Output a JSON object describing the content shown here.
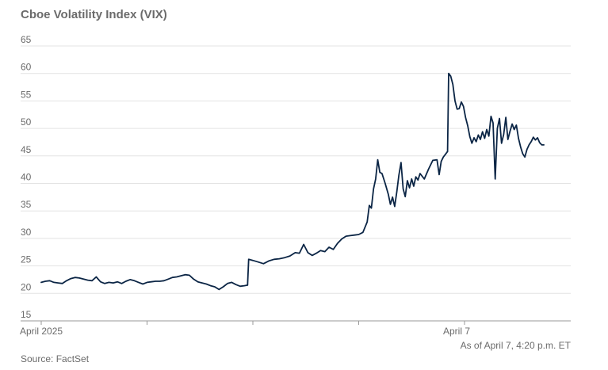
{
  "chart_data": {
    "type": "line",
    "title": "Cboe Volatility Index (VIX)",
    "xlabel": "",
    "ylabel": "",
    "ylim": [
      15,
      65
    ],
    "yticks": [
      15,
      20,
      25,
      30,
      35,
      40,
      45,
      50,
      55,
      60,
      65
    ],
    "grid": true,
    "x_tick_labels": [
      {
        "label": "April 2025",
        "at": 0
      },
      {
        "label": "",
        "at": 1
      },
      {
        "label": "",
        "at": 2
      },
      {
        "label": "",
        "at": 3
      },
      {
        "label": "April 7",
        "at": 4
      }
    ],
    "xlim": [
      0,
      5
    ],
    "series": [
      {
        "name": "",
        "color": "#0b2545",
        "points": [
          [
            0.0,
            22.0
          ],
          [
            0.04,
            22.2
          ],
          [
            0.08,
            22.3
          ],
          [
            0.12,
            22.0
          ],
          [
            0.16,
            21.9
          ],
          [
            0.2,
            21.8
          ],
          [
            0.24,
            22.3
          ],
          [
            0.28,
            22.7
          ],
          [
            0.32,
            22.9
          ],
          [
            0.36,
            22.8
          ],
          [
            0.4,
            22.6
          ],
          [
            0.44,
            22.4
          ],
          [
            0.48,
            22.3
          ],
          [
            0.52,
            23.0
          ],
          [
            0.56,
            22.1
          ],
          [
            0.6,
            21.8
          ],
          [
            0.64,
            22.0
          ],
          [
            0.68,
            21.9
          ],
          [
            0.72,
            22.1
          ],
          [
            0.76,
            21.8
          ],
          [
            0.8,
            22.2
          ],
          [
            0.84,
            22.5
          ],
          [
            0.88,
            22.3
          ],
          [
            0.92,
            22.0
          ],
          [
            0.96,
            21.7
          ],
          [
            1.0,
            22.0
          ],
          [
            1.04,
            22.1
          ],
          [
            1.08,
            22.2
          ],
          [
            1.12,
            22.2
          ],
          [
            1.16,
            22.3
          ],
          [
            1.2,
            22.6
          ],
          [
            1.24,
            22.9
          ],
          [
            1.28,
            23.0
          ],
          [
            1.32,
            23.2
          ],
          [
            1.36,
            23.4
          ],
          [
            1.4,
            23.3
          ],
          [
            1.44,
            22.6
          ],
          [
            1.48,
            22.1
          ],
          [
            1.52,
            21.9
          ],
          [
            1.56,
            21.7
          ],
          [
            1.6,
            21.4
          ],
          [
            1.64,
            21.2
          ],
          [
            1.68,
            20.7
          ],
          [
            1.72,
            21.2
          ],
          [
            1.76,
            21.8
          ],
          [
            1.8,
            22.0
          ],
          [
            1.84,
            21.6
          ],
          [
            1.88,
            21.3
          ],
          [
            1.92,
            21.4
          ],
          [
            1.95,
            21.5
          ],
          [
            1.96,
            26.2
          ],
          [
            2.0,
            26.0
          ],
          [
            2.05,
            25.7
          ],
          [
            2.1,
            25.4
          ],
          [
            2.15,
            25.9
          ],
          [
            2.2,
            26.2
          ],
          [
            2.25,
            26.3
          ],
          [
            2.3,
            26.5
          ],
          [
            2.35,
            26.8
          ],
          [
            2.4,
            27.4
          ],
          [
            2.44,
            27.3
          ],
          [
            2.48,
            28.9
          ],
          [
            2.52,
            27.4
          ],
          [
            2.56,
            26.9
          ],
          [
            2.6,
            27.3
          ],
          [
            2.64,
            27.8
          ],
          [
            2.68,
            27.6
          ],
          [
            2.72,
            28.4
          ],
          [
            2.76,
            28.0
          ],
          [
            2.8,
            29.1
          ],
          [
            2.84,
            29.9
          ],
          [
            2.88,
            30.4
          ],
          [
            2.92,
            30.5
          ],
          [
            2.96,
            30.6
          ],
          [
            3.0,
            30.7
          ],
          [
            3.04,
            31.1
          ],
          [
            3.08,
            33.0
          ],
          [
            3.1,
            36.0
          ],
          [
            3.12,
            35.5
          ],
          [
            3.14,
            39.0
          ],
          [
            3.16,
            40.8
          ],
          [
            3.18,
            44.3
          ],
          [
            3.2,
            42.0
          ],
          [
            3.22,
            41.8
          ],
          [
            3.25,
            40.0
          ],
          [
            3.28,
            38.0
          ],
          [
            3.3,
            36.2
          ],
          [
            3.32,
            37.5
          ],
          [
            3.34,
            35.8
          ],
          [
            3.36,
            38.5
          ],
          [
            3.38,
            41.5
          ],
          [
            3.4,
            43.8
          ],
          [
            3.42,
            39.0
          ],
          [
            3.44,
            37.6
          ],
          [
            3.46,
            40.5
          ],
          [
            3.48,
            39.2
          ],
          [
            3.5,
            40.8
          ],
          [
            3.52,
            39.5
          ],
          [
            3.54,
            41.2
          ],
          [
            3.56,
            40.6
          ],
          [
            3.58,
            41.8
          ],
          [
            3.62,
            40.8
          ],
          [
            3.66,
            42.6
          ],
          [
            3.7,
            44.2
          ],
          [
            3.74,
            44.3
          ],
          [
            3.76,
            41.6
          ],
          [
            3.78,
            44.0
          ],
          [
            3.8,
            44.8
          ],
          [
            3.82,
            45.3
          ],
          [
            3.84,
            45.8
          ],
          [
            3.85,
            60.0
          ],
          [
            3.87,
            59.5
          ],
          [
            3.89,
            58.0
          ],
          [
            3.91,
            55.0
          ],
          [
            3.93,
            53.5
          ],
          [
            3.95,
            53.6
          ],
          [
            3.97,
            54.8
          ],
          [
            3.99,
            54.0
          ],
          [
            4.01,
            52.0
          ],
          [
            4.03,
            50.5
          ],
          [
            4.05,
            48.5
          ],
          [
            4.07,
            47.3
          ],
          [
            4.09,
            48.3
          ],
          [
            4.11,
            47.6
          ],
          [
            4.13,
            48.8
          ],
          [
            4.15,
            48.0
          ],
          [
            4.17,
            49.4
          ],
          [
            4.19,
            48.2
          ],
          [
            4.21,
            49.8
          ],
          [
            4.23,
            48.6
          ],
          [
            4.25,
            52.2
          ],
          [
            4.27,
            51.0
          ],
          [
            4.29,
            40.8
          ],
          [
            4.31,
            50.0
          ],
          [
            4.33,
            51.8
          ],
          [
            4.35,
            47.3
          ],
          [
            4.37,
            48.9
          ],
          [
            4.39,
            52.0
          ],
          [
            4.41,
            48.0
          ],
          [
            4.43,
            49.5
          ],
          [
            4.45,
            50.8
          ],
          [
            4.47,
            49.8
          ],
          [
            4.49,
            50.6
          ],
          [
            4.51,
            48.2
          ],
          [
            4.53,
            46.6
          ],
          [
            4.55,
            45.4
          ],
          [
            4.57,
            44.8
          ],
          [
            4.59,
            46.2
          ],
          [
            4.61,
            47.0
          ],
          [
            4.63,
            47.6
          ],
          [
            4.65,
            48.4
          ],
          [
            4.67,
            47.9
          ],
          [
            4.69,
            48.3
          ],
          [
            4.71,
            47.4
          ],
          [
            4.73,
            47.0
          ],
          [
            4.75,
            47.0
          ]
        ]
      }
    ],
    "as_of": "As of April 7, 4:20 p.m. ET",
    "source": "Source: FactSet"
  }
}
